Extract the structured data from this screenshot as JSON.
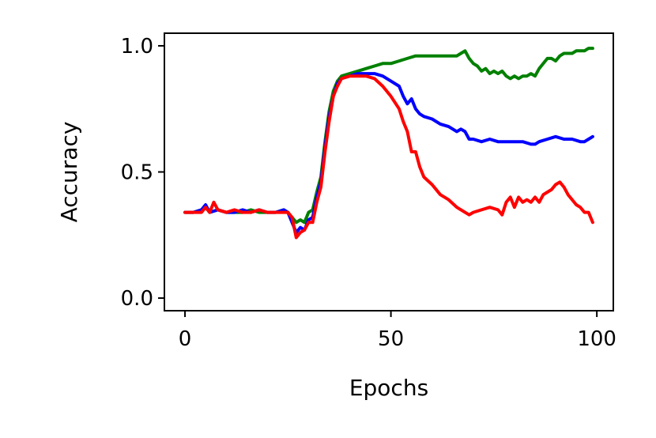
{
  "chart_data": {
    "type": "line",
    "title": "",
    "xlabel": "Epochs",
    "ylabel": "Accuracy",
    "xlim": [
      -5,
      104
    ],
    "ylim": [
      -0.05,
      1.05
    ],
    "xticks": [
      0,
      50,
      100
    ],
    "xtick_labels": [
      "0",
      "50",
      "100"
    ],
    "yticks": [
      0.0,
      0.5,
      1.0
    ],
    "ytick_labels": [
      "0.0",
      "0.5",
      "1.0"
    ],
    "grid": false,
    "legend": "none",
    "series": [
      {
        "color": "#008000",
        "x": [
          0,
          2,
          4,
          5,
          6,
          8,
          10,
          12,
          14,
          16,
          18,
          20,
          22,
          24,
          25,
          26,
          27,
          28,
          29,
          30,
          31,
          32,
          33,
          34,
          35,
          36,
          37,
          38,
          40,
          42,
          44,
          46,
          48,
          50,
          52,
          54,
          56,
          58,
          60,
          62,
          64,
          66,
          67,
          68,
          69,
          70,
          71,
          72,
          73,
          74,
          75,
          76,
          77,
          78,
          79,
          80,
          81,
          82,
          83,
          84,
          85,
          86,
          87,
          88,
          89,
          90,
          91,
          92,
          93,
          94,
          95,
          96,
          97,
          98,
          99
        ],
        "y": [
          0.34,
          0.34,
          0.35,
          0.36,
          0.34,
          0.35,
          0.34,
          0.34,
          0.34,
          0.35,
          0.34,
          0.34,
          0.34,
          0.35,
          0.34,
          0.32,
          0.3,
          0.31,
          0.3,
          0.34,
          0.35,
          0.42,
          0.48,
          0.62,
          0.74,
          0.82,
          0.86,
          0.88,
          0.89,
          0.9,
          0.91,
          0.92,
          0.93,
          0.93,
          0.94,
          0.95,
          0.96,
          0.96,
          0.96,
          0.96,
          0.96,
          0.96,
          0.97,
          0.98,
          0.95,
          0.93,
          0.92,
          0.9,
          0.91,
          0.89,
          0.9,
          0.89,
          0.9,
          0.88,
          0.87,
          0.88,
          0.87,
          0.88,
          0.88,
          0.89,
          0.88,
          0.91,
          0.93,
          0.95,
          0.95,
          0.94,
          0.96,
          0.97,
          0.97,
          0.97,
          0.98,
          0.98,
          0.98,
          0.99,
          0.99
        ]
      },
      {
        "color": "#0000ff",
        "x": [
          0,
          2,
          4,
          5,
          6,
          8,
          10,
          12,
          14,
          16,
          18,
          20,
          22,
          24,
          25,
          26,
          27,
          28,
          29,
          30,
          31,
          32,
          33,
          34,
          35,
          36,
          37,
          38,
          40,
          42,
          44,
          46,
          48,
          50,
          52,
          53,
          54,
          55,
          56,
          57,
          58,
          60,
          62,
          64,
          66,
          67,
          68,
          69,
          70,
          72,
          74,
          76,
          78,
          80,
          82,
          84,
          85,
          86,
          88,
          90,
          92,
          94,
          96,
          97,
          98,
          99
        ],
        "y": [
          0.34,
          0.34,
          0.35,
          0.37,
          0.34,
          0.35,
          0.34,
          0.34,
          0.35,
          0.34,
          0.35,
          0.34,
          0.34,
          0.35,
          0.34,
          0.3,
          0.26,
          0.28,
          0.27,
          0.31,
          0.32,
          0.4,
          0.46,
          0.6,
          0.72,
          0.8,
          0.85,
          0.87,
          0.88,
          0.89,
          0.89,
          0.89,
          0.88,
          0.86,
          0.84,
          0.8,
          0.77,
          0.79,
          0.75,
          0.73,
          0.72,
          0.71,
          0.69,
          0.68,
          0.66,
          0.67,
          0.66,
          0.63,
          0.63,
          0.62,
          0.63,
          0.62,
          0.62,
          0.62,
          0.62,
          0.61,
          0.61,
          0.62,
          0.63,
          0.64,
          0.63,
          0.63,
          0.62,
          0.62,
          0.63,
          0.64
        ]
      },
      {
        "color": "#ff0000",
        "x": [
          0,
          2,
          4,
          5,
          6,
          7,
          8,
          10,
          12,
          14,
          16,
          18,
          20,
          22,
          24,
          25,
          26,
          27,
          28,
          29,
          30,
          31,
          32,
          33,
          34,
          35,
          36,
          37,
          38,
          40,
          42,
          44,
          46,
          48,
          50,
          52,
          53,
          54,
          55,
          56,
          57,
          58,
          60,
          62,
          64,
          66,
          68,
          69,
          70,
          72,
          74,
          76,
          77,
          78,
          79,
          80,
          81,
          82,
          83,
          84,
          85,
          86,
          87,
          88,
          89,
          90,
          91,
          92,
          93,
          94,
          95,
          96,
          97,
          98,
          99
        ],
        "y": [
          0.34,
          0.34,
          0.34,
          0.36,
          0.34,
          0.38,
          0.35,
          0.34,
          0.35,
          0.34,
          0.34,
          0.35,
          0.34,
          0.34,
          0.34,
          0.34,
          0.32,
          0.24,
          0.26,
          0.27,
          0.3,
          0.3,
          0.38,
          0.44,
          0.58,
          0.7,
          0.8,
          0.84,
          0.87,
          0.88,
          0.88,
          0.88,
          0.87,
          0.84,
          0.8,
          0.75,
          0.7,
          0.66,
          0.58,
          0.58,
          0.52,
          0.48,
          0.45,
          0.41,
          0.39,
          0.36,
          0.34,
          0.33,
          0.34,
          0.35,
          0.36,
          0.35,
          0.33,
          0.38,
          0.4,
          0.36,
          0.4,
          0.38,
          0.39,
          0.38,
          0.4,
          0.38,
          0.41,
          0.42,
          0.43,
          0.45,
          0.46,
          0.44,
          0.41,
          0.39,
          0.37,
          0.36,
          0.34,
          0.34,
          0.3
        ]
      }
    ]
  }
}
